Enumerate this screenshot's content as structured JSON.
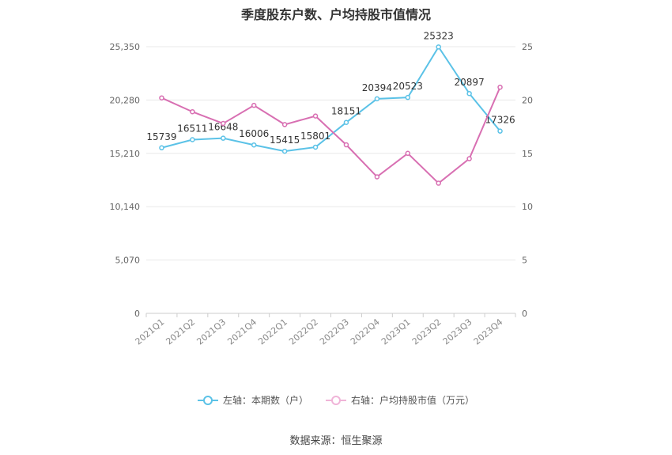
{
  "chart_data": {
    "type": "line",
    "title": "季度股东户数、户均持股市值情况",
    "categories": [
      "2021Q1",
      "2021Q2",
      "2021Q3",
      "2021Q4",
      "2022Q1",
      "2022Q2",
      "2022Q3",
      "2022Q4",
      "2023Q1",
      "2023Q2",
      "2023Q3",
      "2023Q4"
    ],
    "y_left": {
      "ticks": [
        "0",
        "5,070",
        "10,140",
        "15,210",
        "20,280",
        "25,350"
      ],
      "ylim": [
        0,
        25350
      ]
    },
    "y_right": {
      "ticks": [
        "0",
        "5",
        "10",
        "15",
        "20",
        "25"
      ],
      "ylim": [
        0,
        25
      ]
    },
    "series": [
      {
        "name": "左轴：本期数（户）",
        "axis": "left",
        "color": "#5bc2e7",
        "values": [
          15739,
          16511,
          16648,
          16006,
          15415,
          15801,
          18151,
          20394,
          20523,
          25323,
          20897,
          17326
        ],
        "labels": [
          "15739",
          "16511",
          "16648",
          "16006",
          "15415",
          "15801",
          "18151",
          "20394",
          "20523",
          "25323",
          "20897",
          "17326"
        ]
      },
      {
        "name": "右轴：户均持股市值（万元）",
        "axis": "right",
        "color": "#d86fb2",
        "values": [
          20.2,
          18.9,
          17.8,
          19.5,
          17.7,
          18.5,
          15.8,
          12.8,
          15.0,
          12.2,
          14.5,
          21.2
        ]
      }
    ],
    "grid": true,
    "legend_position": "bottom"
  },
  "source": "数据来源：恒生聚源"
}
